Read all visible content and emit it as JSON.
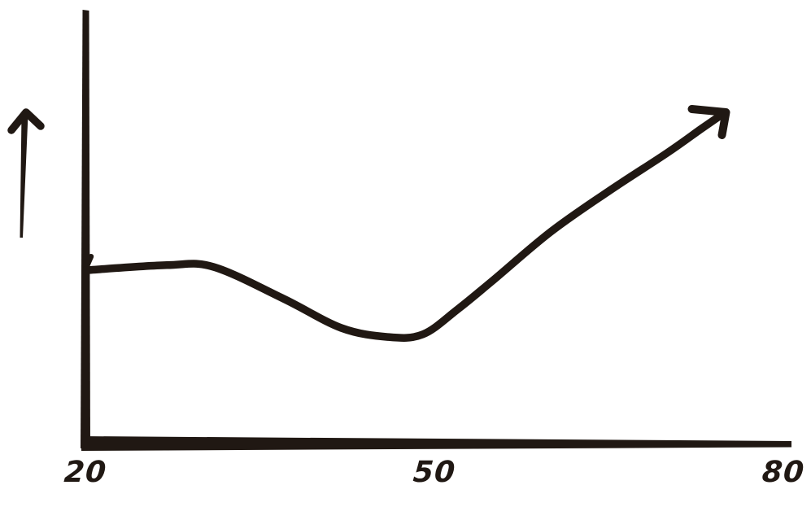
{
  "chart": {
    "ink_color": "#201813",
    "background_color": "#ffffff"
  },
  "chart_data": {
    "type": "line",
    "style": "hand-drawn-marker-sketch",
    "title": "",
    "xlabel": "",
    "ylabel": "",
    "x": [
      20,
      27,
      31,
      37,
      42,
      46,
      49,
      52,
      55,
      60,
      65,
      70,
      73,
      75
    ],
    "y": [
      0.4,
      0.412,
      0.408,
      0.335,
      0.267,
      0.246,
      0.252,
      0.31,
      0.376,
      0.489,
      0.583,
      0.671,
      0.728,
      0.765
    ],
    "xlim": [
      20,
      80
    ],
    "ylim": [
      0,
      1
    ],
    "x_ticks": [
      20,
      50,
      80
    ],
    "tick_labels": [
      "20",
      "50",
      "80"
    ],
    "grid": false,
    "legend": false,
    "annotations": [
      "curve ends in an arrowhead pointing up-right, implying continued increase",
      "separate hand-drawn arrow pointing up, left of the y-axis, indicating the y value increases upward",
      "y-axis has no numeric labels"
    ]
  }
}
